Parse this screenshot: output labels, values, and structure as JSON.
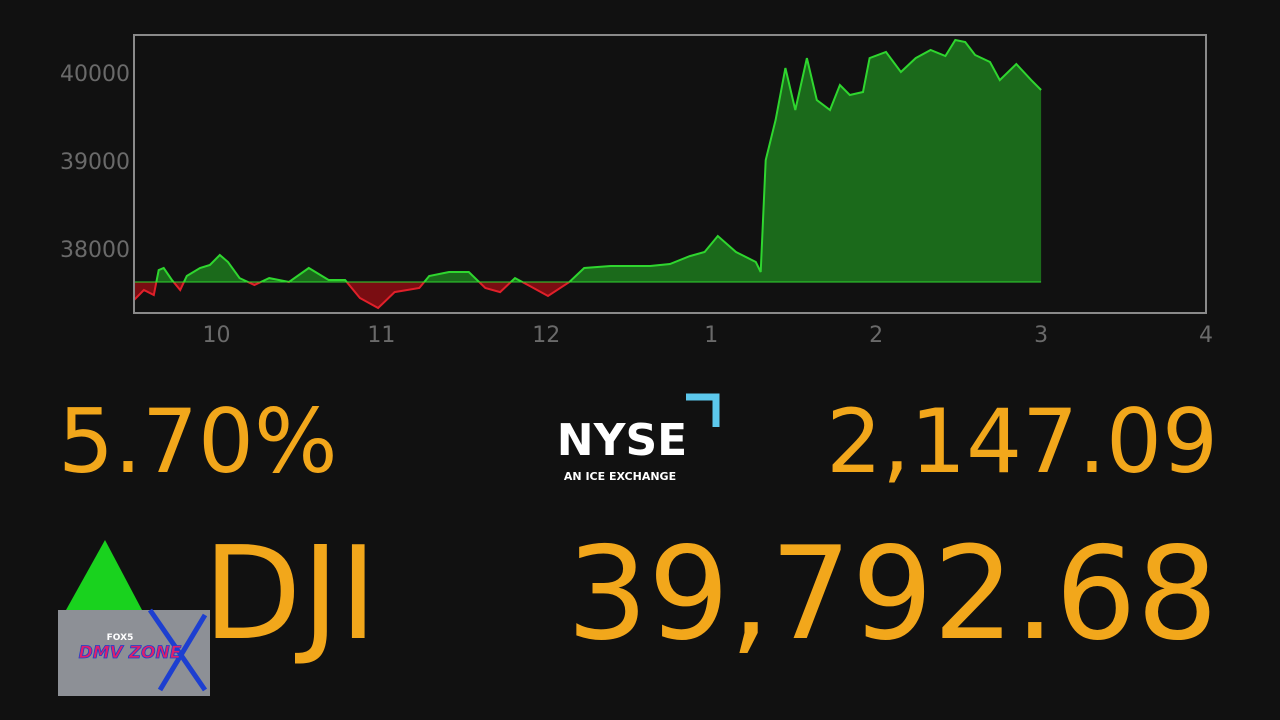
{
  "chart_data": {
    "type": "area",
    "x": [
      9.5,
      9.56,
      9.62,
      9.65,
      9.68,
      9.73,
      9.78,
      9.82,
      9.9,
      9.96,
      10.02,
      10.07,
      10.14,
      10.23,
      10.32,
      10.44,
      10.56,
      10.68,
      10.78,
      10.87,
      10.98,
      11.08,
      11.23,
      11.29,
      11.41,
      11.53,
      11.63,
      11.72,
      11.81,
      11.9,
      12.01,
      12.14,
      12.23,
      12.39,
      12.51,
      12.63,
      12.75,
      12.87,
      12.96,
      13.04,
      13.15,
      13.27,
      13.3,
      13.33,
      13.39,
      13.45,
      13.51,
      13.58,
      13.64,
      13.72,
      13.78,
      13.84,
      13.92,
      13.96,
      14.06,
      14.15,
      14.24,
      14.33,
      14.42,
      14.48,
      14.54,
      14.6,
      14.69,
      14.75,
      14.85,
      14.94,
      15.0
    ],
    "values": [
      37420,
      37534,
      37477,
      37761,
      37784,
      37648,
      37534,
      37693,
      37784,
      37818,
      37932,
      37852,
      37670,
      37591,
      37670,
      37625,
      37784,
      37648,
      37648,
      37443,
      37330,
      37511,
      37557,
      37693,
      37739,
      37739,
      37557,
      37511,
      37670,
      37580,
      37466,
      37625,
      37784,
      37807,
      37807,
      37807,
      37830,
      37920,
      37966,
      38148,
      37966,
      37852,
      37739,
      39011,
      39466,
      40057,
      39580,
      40170,
      39693,
      39580,
      39864,
      39750,
      39784,
      40170,
      40239,
      40011,
      40170,
      40261,
      40193,
      40375,
      40352,
      40205,
      40125,
      39920,
      40102,
      39920,
      39807
    ],
    "baseline": 37625,
    "up_color": "#2fd62f",
    "down_color": "#e0202a",
    "up_fill": "#1b6a1b",
    "down_fill": "#7a0d12",
    "xlim": [
      9.5,
      16
    ],
    "ylim": [
      37273,
      40432
    ],
    "xticks": [
      10,
      11,
      12,
      {
        "value": 13,
        "label": "1"
      },
      {
        "value": 14,
        "label": "2"
      },
      {
        "value": 15,
        "label": "3"
      },
      {
        "value": 16,
        "label": "4"
      }
    ],
    "yticks": [
      38000,
      39000,
      40000
    ]
  },
  "ticker": {
    "percent_change": "5.70%",
    "exchange": "NYSE",
    "exchange_tagline": "AN ICE EXCHANGE",
    "points_change": "2,147.09",
    "symbol": "DJI",
    "price": "39,792.68"
  },
  "logo": {
    "brand": "FOX5",
    "name": "DMV ZONE"
  }
}
